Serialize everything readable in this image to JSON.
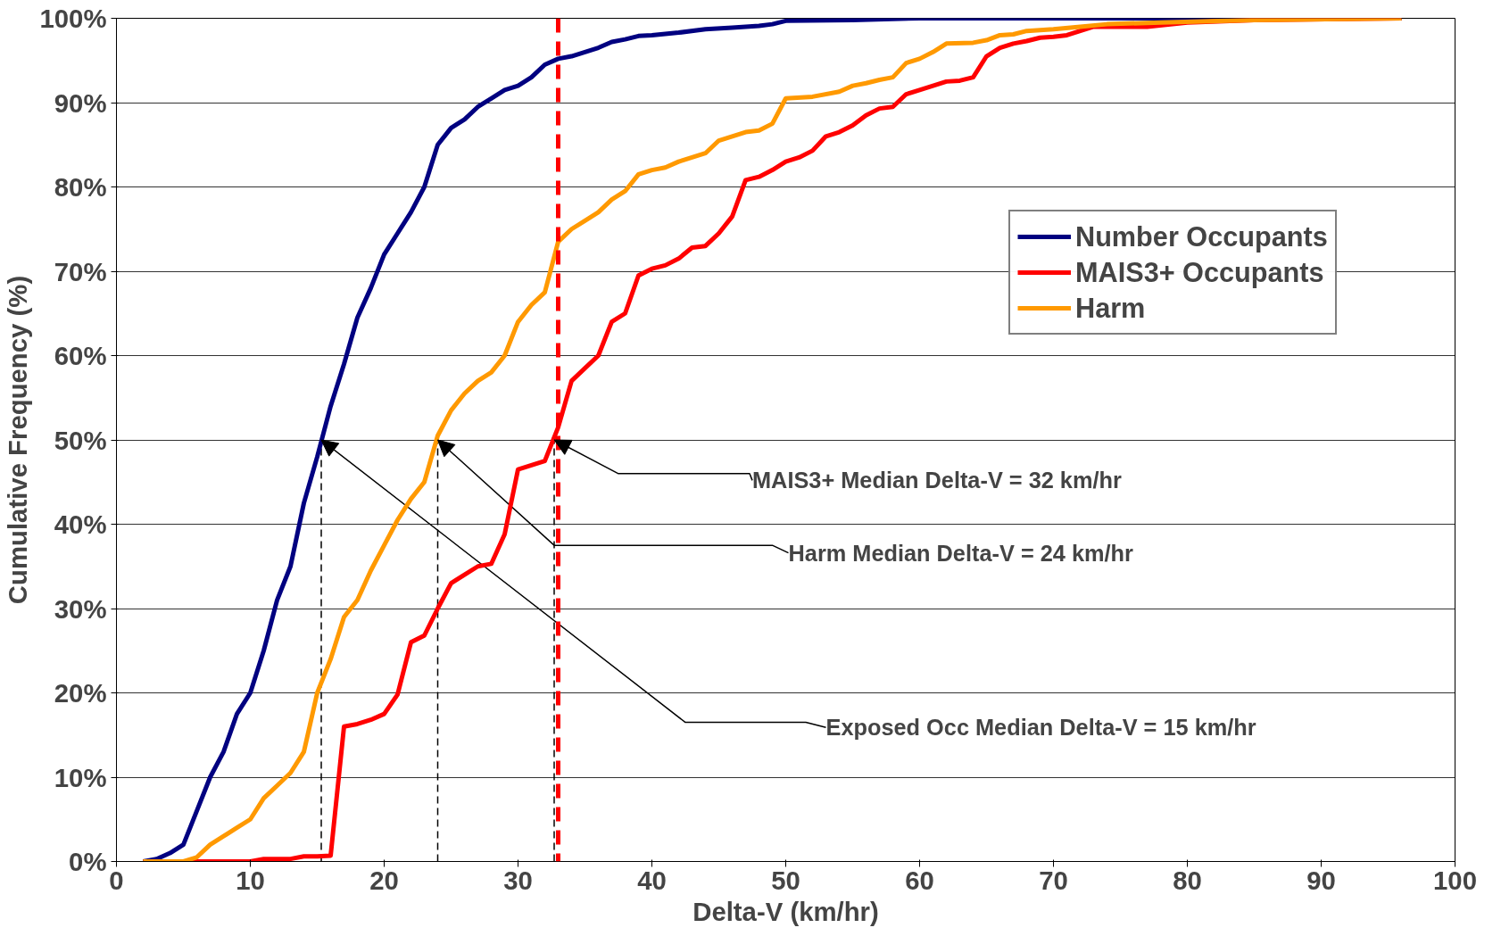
{
  "chart_data": {
    "type": "line",
    "xlabel": "Delta-V (km/hr)",
    "ylabel": "Cumulative Frequency (%)",
    "xlim": [
      0,
      100
    ],
    "xticks": [
      0,
      10,
      20,
      30,
      40,
      50,
      60,
      70,
      80,
      90,
      100
    ],
    "ylim": [
      0,
      100
    ],
    "yticks": [
      {
        "value": 0,
        "label": "0%"
      },
      {
        "value": 10,
        "label": "10%"
      },
      {
        "value": 20,
        "label": "20%"
      },
      {
        "value": 30,
        "label": "30%"
      },
      {
        "value": 40,
        "label": "40%"
      },
      {
        "value": 50,
        "label": "50%"
      },
      {
        "value": 60,
        "label": "60%"
      },
      {
        "value": 70,
        "label": "70%"
      },
      {
        "value": 80,
        "label": "80%"
      },
      {
        "value": 90,
        "label": "90%"
      },
      {
        "value": 100,
        "label": "100%"
      }
    ],
    "grid": "y",
    "legend": "right",
    "line_style": "solid",
    "marker": "none",
    "series": [
      {
        "name": "Number Occupants",
        "color": "#000080",
        "x": [
          2,
          3,
          4,
          5,
          6,
          7,
          8,
          9,
          10,
          11,
          12,
          13,
          14,
          15,
          16,
          17,
          18,
          19,
          20,
          21,
          22,
          23,
          24,
          25,
          26,
          27,
          28,
          29,
          30,
          31,
          32,
          33,
          34,
          35,
          36,
          37,
          38,
          39,
          40,
          42,
          44,
          46,
          48,
          49,
          50,
          55,
          60,
          96
        ],
        "values": [
          0,
          0.3,
          1,
          2,
          6,
          10,
          13,
          17.5,
          20,
          25,
          31,
          35,
          42.5,
          48,
          54,
          59,
          64.5,
          68,
          72,
          74.5,
          77,
          80,
          85,
          87,
          88,
          89.5,
          90.5,
          91.5,
          92,
          93,
          94.5,
          95.2,
          95.5,
          96,
          96.5,
          97.2,
          97.5,
          97.9,
          98,
          98.3,
          98.7,
          98.9,
          99.1,
          99.3,
          99.7,
          99.8,
          100,
          100
        ]
      },
      {
        "name": "MAIS3+ Occupants",
        "color": "#ff0000",
        "x": [
          2,
          10,
          11,
          13,
          14,
          15,
          16,
          17,
          18,
          19,
          20,
          21,
          22,
          23,
          24,
          25,
          26,
          27,
          28,
          29,
          30,
          31,
          32,
          33,
          34,
          35,
          36,
          37,
          38,
          39,
          40,
          41,
          42,
          43,
          44,
          45,
          46,
          47,
          48,
          49,
          50,
          51,
          52,
          53,
          54,
          55,
          56,
          57,
          58,
          59,
          60,
          61,
          62,
          63,
          64,
          65,
          66,
          67,
          68,
          69,
          70,
          71,
          73,
          77,
          80,
          85,
          96
        ],
        "values": [
          0,
          0,
          0.3,
          0.3,
          0.6,
          0.6,
          0.7,
          16,
          16.3,
          16.8,
          17.5,
          19.8,
          26,
          26.8,
          30,
          33,
          34,
          35,
          35.3,
          38.8,
          46.5,
          47,
          47.5,
          51.5,
          57,
          58.5,
          60,
          64,
          65,
          69.5,
          70.3,
          70.7,
          71.5,
          72.8,
          73,
          74.5,
          76.5,
          80.8,
          81.2,
          82,
          83,
          83.5,
          84.3,
          86,
          86.5,
          87.3,
          88.5,
          89.3,
          89.5,
          91,
          91.5,
          92,
          92.5,
          92.6,
          93,
          95.5,
          96.5,
          97,
          97.3,
          97.7,
          97.8,
          98,
          99,
          99,
          99.5,
          99.8,
          100
        ]
      },
      {
        "name": "Harm",
        "color": "#ff9900",
        "x": [
          2,
          5,
          6,
          7,
          8,
          9,
          10,
          11,
          12,
          13,
          14,
          15,
          16,
          17,
          18,
          19,
          20,
          21,
          22,
          23,
          24,
          25,
          26,
          27,
          28,
          29,
          30,
          31,
          32,
          33,
          34,
          35,
          36,
          37,
          38,
          39,
          40,
          41,
          42,
          43,
          44,
          45,
          46,
          47,
          48,
          49,
          50,
          52,
          54,
          55,
          56,
          57,
          58,
          59,
          60,
          61,
          62,
          64,
          65,
          66,
          67,
          68,
          70,
          72,
          74,
          78,
          85,
          96
        ],
        "values": [
          0,
          0,
          0.5,
          2,
          3,
          4,
          5,
          7.5,
          9,
          10.5,
          13,
          20,
          24,
          29,
          31,
          34.5,
          37.5,
          40.5,
          43,
          45,
          50.5,
          53.5,
          55.5,
          57,
          58,
          60,
          64,
          66,
          67.5,
          73.5,
          75,
          76,
          77,
          78.5,
          79.5,
          81.5,
          82,
          82.3,
          83,
          83.5,
          84,
          85.5,
          86,
          86.5,
          86.7,
          87.5,
          90.5,
          90.7,
          91.3,
          92,
          92.3,
          92.7,
          93,
          94.7,
          95.2,
          96,
          97,
          97.1,
          97.4,
          98,
          98.1,
          98.5,
          98.7,
          99,
          99.3,
          99.5,
          99.8,
          100
        ]
      }
    ],
    "ref_lines": [
      {
        "axis": "x",
        "value": 33,
        "color": "#ff0000",
        "line_style": "dashed"
      }
    ],
    "annotations": [
      {
        "text": "MAIS3+ Median Delta-V = 32 km/hr",
        "x": 32.7,
        "y": 50
      },
      {
        "text": "Harm Median Delta-V = 24 km/hr",
        "x": 24,
        "y": 50
      },
      {
        "text": "Exposed Occ Median Delta-V = 15 km/hr",
        "x": 15.3,
        "y": 50
      }
    ]
  }
}
